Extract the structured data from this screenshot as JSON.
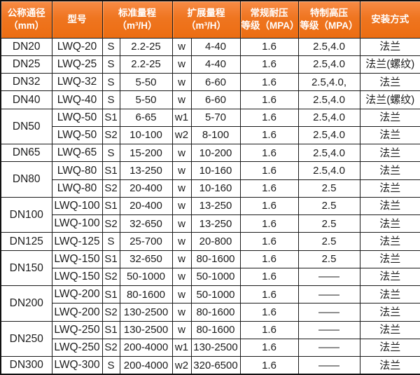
{
  "colors": {
    "header_background": "#ef7520",
    "header_text": "#ffffff",
    "border": "#1a1a1a",
    "cell_text": "#1c1c1c",
    "cell_background": "#ffffff"
  },
  "table": {
    "headers": {
      "dn": "公称通径\n（mm）",
      "model": "型号",
      "standard_range": "标准量程\n（m³/H）",
      "extended_range": "扩展量程\n（m³/H）",
      "normal_pressure": "常规耐压\n等级（MPA）",
      "high_pressure": "特制高压\n等级（MPA）",
      "installation": "安装方式"
    },
    "rows": [
      {
        "dn": "DN20",
        "model": "LWQ-20",
        "s": "S",
        "std": "2.2-25",
        "w": "w",
        "ext": "4-40",
        "pn": "1.6",
        "hp": "2.5,4.0",
        "install": "法兰"
      },
      {
        "dn": "DN25",
        "model": "LWQ-25",
        "s": "S",
        "std": "2.2-25",
        "w": "w",
        "ext": "4-40",
        "pn": "1.6",
        "hp": "2.5,4.0",
        "install": "法兰(螺纹)"
      },
      {
        "dn": "DN32",
        "model": "LWQ-32",
        "s": "S",
        "std": "5-50",
        "w": "w",
        "ext": "6-60",
        "pn": "1.6",
        "hp": "2.5,4.0,",
        "install": "法兰"
      },
      {
        "dn": "DN40",
        "model": "LWQ-40",
        "s": "S",
        "std": "5-50",
        "w": "w",
        "ext": "6-60",
        "pn": "1.6",
        "hp": "2.5,4.0",
        "install": "法兰(螺纹)"
      },
      {
        "dn": "DN50",
        "model": "LWQ-50",
        "s": "S1",
        "std": "6-65",
        "w": "w1",
        "ext": "5-70",
        "pn": "1.6",
        "hp": "2.5,4.0",
        "install": "法兰"
      },
      {
        "model": "LWQ-50",
        "s": "S2",
        "std": "10-100",
        "w": "w2",
        "ext": "8-100",
        "pn": "1.6",
        "hp": "2.5,4.0",
        "install": "法兰"
      },
      {
        "dn": "DN65",
        "model": "LWQ-65",
        "s": "S",
        "std": "15-200",
        "w": "w",
        "ext": "10-200",
        "pn": "1.6",
        "hp": "2.5,4.0",
        "install": "法兰"
      },
      {
        "dn": "DN80",
        "model": "LWQ-80",
        "s": "S1",
        "std": "13-250",
        "w": "w",
        "ext": "10-160",
        "pn": "1.6",
        "hp": "2.5,4.0",
        "install": "法兰"
      },
      {
        "model": "LWQ-80",
        "s": "S2",
        "std": "20-400",
        "w": "w",
        "ext": "10-160",
        "pn": "1.6",
        "hp": "2.5",
        "install": "法兰"
      },
      {
        "dn": "DN100",
        "model": "LWQ-100",
        "s": "S1",
        "std": "20-400",
        "w": "w",
        "ext": "13-250",
        "pn": "1.6",
        "hp": "2.5",
        "install": "法兰"
      },
      {
        "model": "LWQ-100",
        "s": "S2",
        "std": "32-650",
        "w": "w",
        "ext": "13-250",
        "pn": "1.6",
        "hp": "2.5",
        "install": "法兰"
      },
      {
        "dn": "DN125",
        "model": "LWQ-125",
        "s": "S",
        "std": "25-700",
        "w": "w",
        "ext": "20-800",
        "pn": "1.6",
        "hp": "2.5",
        "install": "法兰"
      },
      {
        "dn": "DN150",
        "model": "LWQ-150",
        "s": "S1",
        "std": "32-650",
        "w": "w",
        "ext": "80-1600",
        "pn": "1.6",
        "hp": "2.5",
        "install": "法兰"
      },
      {
        "model": "LWQ-150",
        "s": "S2",
        "std": "50-1000",
        "w": "w",
        "ext": "50-1000",
        "pn": "1.6",
        "hp": "——",
        "install": "法兰"
      },
      {
        "dn": "DN200",
        "model": "LWQ-200",
        "s": "S1",
        "std": "80-1600",
        "w": "w",
        "ext": "50-1000",
        "pn": "1.6",
        "hp": "——",
        "install": "法兰"
      },
      {
        "model": "LWQ-200",
        "s": "S2",
        "std": "130-2500",
        "w": "w",
        "ext": "80-1600",
        "pn": "1.6",
        "hp": "——",
        "install": "法兰"
      },
      {
        "dn": "DN250",
        "model": "LWQ-250",
        "s": "S1",
        "std": "130-2500",
        "w": "w",
        "ext": "80-1600",
        "pn": "1.6",
        "hp": "——",
        "install": "法兰"
      },
      {
        "model": "LWQ-250",
        "s": "S2",
        "std": "200-4000",
        "w": "w1",
        "ext": "130-2500",
        "pn": "1.6",
        "hp": "——",
        "install": "法兰"
      },
      {
        "dn": "DN300",
        "model": "LWQ-300",
        "s": "S",
        "std": "200-4000",
        "w": "w2",
        "ext": "320-6500",
        "pn": "1.6",
        "hp": "——",
        "install": "法兰"
      }
    ]
  }
}
